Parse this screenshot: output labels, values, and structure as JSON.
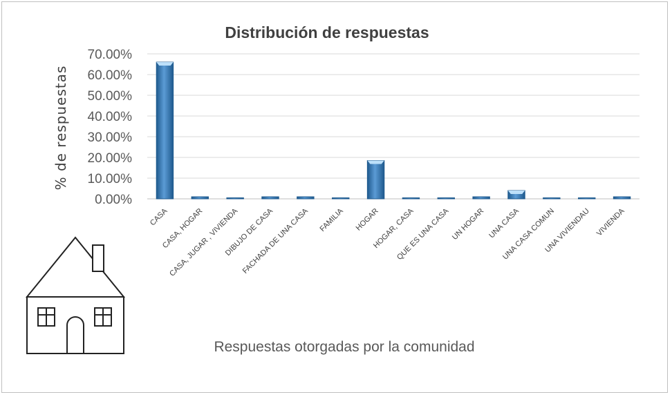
{
  "chart_data": {
    "type": "bar",
    "title": "Distribución  de respuestas",
    "xlabel": "Respuestas otorgadas por la comunidad",
    "ylabel": "% de respuestas",
    "ylim": [
      0,
      0.7
    ],
    "yticks": [
      "0.00%",
      "10.00%",
      "20.00%",
      "30.00%",
      "40.00%",
      "50.00%",
      "60.00%",
      "70.00%"
    ],
    "grid": true,
    "legend": "none",
    "categories": [
      "CASA",
      "CASA, HOGAR",
      "CASA, JUGAR , VIVIENDA",
      "DIBUJO DE CASA",
      "FACHADA DE UNA CASA",
      "FAMILIA",
      "HOGAR",
      "HOGAR, CASA",
      "QUE ES UNA CASA",
      "UN HOGAR",
      "UNA CASA",
      "UNA CASA COMUN",
      "UNA VIVIENDAU",
      "VIVIENDA"
    ],
    "values": [
      0.66,
      0.01,
      0.005,
      0.01,
      0.01,
      0.005,
      0.185,
      0.005,
      0.005,
      0.01,
      0.04,
      0.005,
      0.005,
      0.01
    ],
    "bar_color": "#5b9bd5",
    "bar_dark": "#1f5a8e",
    "bar_light": "#bde0fa"
  },
  "decoration": {
    "house_icon": "house-icon"
  }
}
